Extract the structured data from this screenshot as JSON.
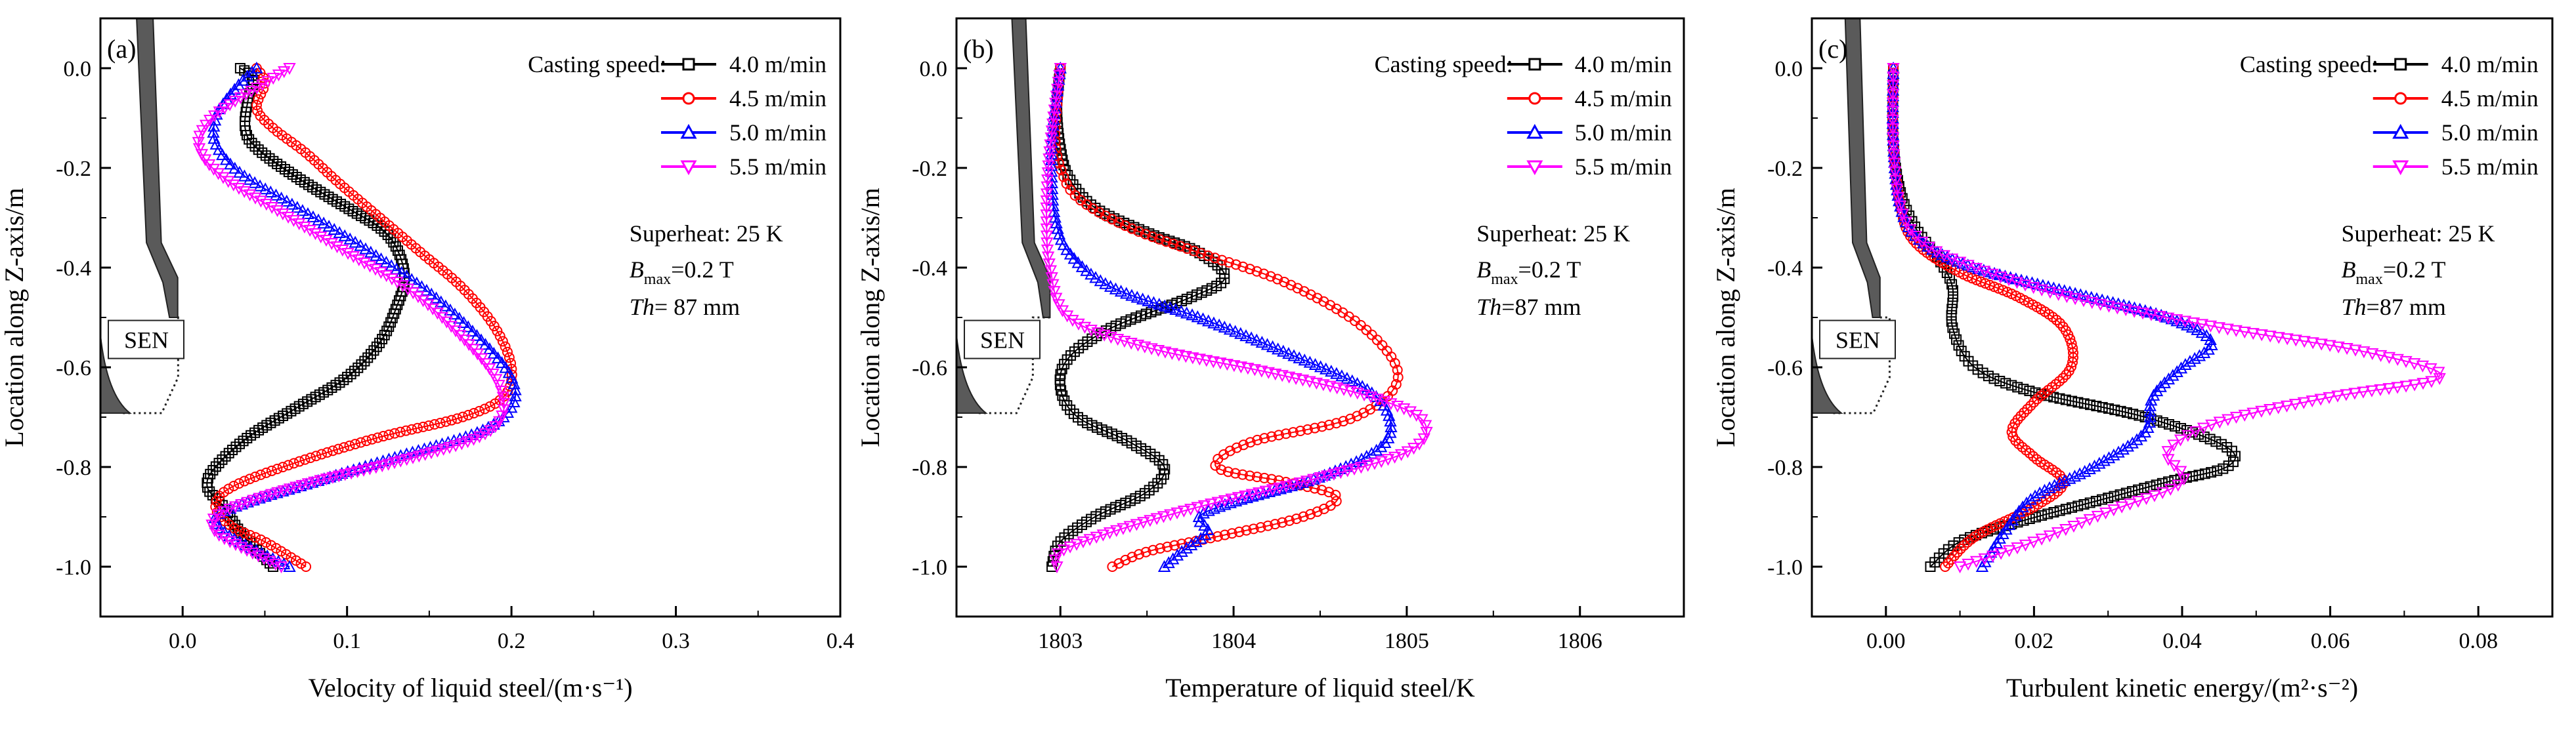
{
  "colors": {
    "4.0 m/min": "#000000",
    "4.5 m/min": "#ff0000",
    "5.0 m/min": "#0000ff",
    "5.5 m/min": "#ff00ff",
    "sen": "#5a5a5a"
  },
  "legend_title": "Casting speed:",
  "sen_label": "SEN",
  "chart_data": [
    {
      "type": "line",
      "panel": "(a)",
      "xlabel": "Velocity of liquid steel/(m·s⁻¹)",
      "ylabel": "Location along Z-axis/m",
      "xlim": [
        -0.05,
        0.4
      ],
      "ylim": [
        -1.1,
        0.1
      ],
      "xticks": [
        "0.0",
        "0.1",
        "0.2",
        "0.3",
        "0.4"
      ],
      "yticks": [
        "0.0",
        "-0.2",
        "-0.4",
        "-0.6",
        "-0.8",
        "-1.0"
      ],
      "xtick_values": [
        0,
        0.1,
        0.2,
        0.3,
        0.4
      ],
      "ytick_values": [
        0,
        -0.2,
        -0.4,
        -0.6,
        -0.8,
        -1.0
      ],
      "sen": {
        "x": [
          -0.038,
          -0.028,
          -0.022,
          -0.012,
          -0.008,
          -0.003,
          -0.003,
          -0.013,
          -0.018,
          -0.03
        ],
        "z": [
          0.1,
          0.1,
          -0.35,
          -0.43,
          -0.5,
          -0.5,
          -0.42,
          -0.35,
          0.1,
          0.1
        ]
      },
      "annotations": {
        "superheat": "Superheat: 25 K",
        "bmax_sym": "B",
        "bmax_sub": "max",
        "bmax_val": "=0.2 T",
        "th_sym": "Th",
        "th_val": "= 87 mm"
      },
      "series": [
        {
          "name": "4.0 m/min",
          "marker": "square",
          "x": [
            0.035,
            0.043,
            0.04,
            0.038,
            0.045,
            0.07,
            0.1,
            0.12,
            0.13,
            0.135,
            0.13,
            0.12,
            0.1,
            0.07,
            0.04,
            0.02,
            0.015,
            0.025,
            0.035,
            0.055
          ],
          "y": [
            0.0,
            -0.02,
            -0.06,
            -0.12,
            -0.16,
            -0.22,
            -0.28,
            -0.32,
            -0.36,
            -0.42,
            -0.48,
            -0.55,
            -0.62,
            -0.68,
            -0.74,
            -0.8,
            -0.84,
            -0.88,
            -0.93,
            -1.0
          ]
        },
        {
          "name": "4.5 m/min",
          "marker": "circle",
          "x": [
            0.045,
            0.05,
            0.045,
            0.055,
            0.075,
            0.095,
            0.12,
            0.145,
            0.17,
            0.19,
            0.2,
            0.195,
            0.17,
            0.12,
            0.07,
            0.03,
            0.02,
            0.03,
            0.05,
            0.075
          ],
          "y": [
            0.0,
            -0.03,
            -0.08,
            -0.12,
            -0.17,
            -0.23,
            -0.3,
            -0.37,
            -0.44,
            -0.52,
            -0.6,
            -0.66,
            -0.7,
            -0.74,
            -0.79,
            -0.84,
            -0.88,
            -0.92,
            -0.95,
            -1.0
          ]
        },
        {
          "name": "5.0 m/min",
          "marker": "triangle-up",
          "x": [
            0.045,
            0.035,
            0.025,
            0.02,
            0.02,
            0.035,
            0.07,
            0.11,
            0.15,
            0.18,
            0.2,
            0.2,
            0.18,
            0.13,
            0.08,
            0.04,
            0.02,
            0.025,
            0.04,
            0.065
          ],
          "y": [
            0.0,
            -0.03,
            -0.07,
            -0.1,
            -0.15,
            -0.21,
            -0.28,
            -0.36,
            -0.45,
            -0.54,
            -0.62,
            -0.68,
            -0.73,
            -0.78,
            -0.83,
            -0.87,
            -0.9,
            -0.93,
            -0.96,
            -1.0
          ]
        },
        {
          "name": "5.5 m/min",
          "marker": "triangle-down",
          "x": [
            0.065,
            0.05,
            0.03,
            0.015,
            0.01,
            0.025,
            0.06,
            0.1,
            0.14,
            0.17,
            0.19,
            0.195,
            0.18,
            0.13,
            0.08,
            0.04,
            0.02,
            0.02,
            0.035,
            0.06
          ],
          "y": [
            0.0,
            -0.03,
            -0.07,
            -0.11,
            -0.16,
            -0.22,
            -0.29,
            -0.37,
            -0.45,
            -0.54,
            -0.62,
            -0.69,
            -0.74,
            -0.79,
            -0.83,
            -0.87,
            -0.9,
            -0.93,
            -0.96,
            -1.0
          ]
        }
      ]
    },
    {
      "type": "line",
      "panel": "(b)",
      "xlabel": "Temperature of liquid steel/K",
      "ylabel": "Location along Z-axis/m",
      "xlim": [
        1802.4,
        1806.6
      ],
      "ylim": [
        -1.1,
        0.1
      ],
      "xticks": [
        "1803",
        "1804",
        "1805",
        "1806"
      ],
      "yticks": [
        "0.0",
        "-0.2",
        "-0.4",
        "-0.6",
        "-0.8",
        "-1.0"
      ],
      "xtick_values": [
        1803,
        1804,
        1805,
        1806
      ],
      "ytick_values": [
        0,
        -0.2,
        -0.4,
        -0.6,
        -0.8,
        -1.0
      ],
      "sen": {
        "x": [
          1802.63,
          1802.72,
          1802.78,
          1802.87,
          1802.9,
          1802.94,
          1802.94,
          1802.85,
          1802.8,
          1802.7
        ],
        "z": [
          0.1,
          0.1,
          -0.35,
          -0.43,
          -0.5,
          -0.5,
          -0.42,
          -0.35,
          0.1,
          0.1
        ]
      },
      "annotations": {
        "superheat": "Superheat: 25 K",
        "bmax_sym": "B",
        "bmax_sub": "max",
        "bmax_val": "=0.2 T",
        "th_sym": "Th",
        "th_val": "=87 mm"
      },
      "series": [
        {
          "name": "4.0 m/min",
          "marker": "square",
          "x": [
            1803.0,
            1802.98,
            1803.0,
            1803.05,
            1803.2,
            1803.5,
            1803.8,
            1803.95,
            1803.75,
            1803.3,
            1803.05,
            1803.0,
            1803.1,
            1803.4,
            1803.6,
            1803.5,
            1803.2,
            1803.0,
            1802.95
          ],
          "y": [
            0.0,
            -0.08,
            -0.16,
            -0.22,
            -0.28,
            -0.33,
            -0.37,
            -0.42,
            -0.46,
            -0.52,
            -0.58,
            -0.64,
            -0.7,
            -0.75,
            -0.8,
            -0.85,
            -0.9,
            -0.95,
            -1.0
          ]
        },
        {
          "name": "4.5 m/min",
          "marker": "circle",
          "x": [
            1803.0,
            1802.98,
            1802.97,
            1803.0,
            1803.1,
            1803.4,
            1803.8,
            1804.3,
            1804.75,
            1804.95,
            1804.7,
            1804.1,
            1803.9,
            1804.3,
            1804.6,
            1804.4,
            1803.9,
            1803.5,
            1803.3
          ],
          "y": [
            0.0,
            -0.08,
            -0.14,
            -0.2,
            -0.26,
            -0.32,
            -0.37,
            -0.43,
            -0.52,
            -0.62,
            -0.7,
            -0.75,
            -0.8,
            -0.83,
            -0.86,
            -0.9,
            -0.94,
            -0.97,
            -1.0
          ]
        },
        {
          "name": "5.0 m/min",
          "marker": "triangle-up",
          "x": [
            1803.0,
            1802.97,
            1802.95,
            1802.95,
            1802.97,
            1803.05,
            1803.3,
            1803.8,
            1804.3,
            1804.75,
            1804.9,
            1804.85,
            1804.5,
            1804.0,
            1803.8,
            1803.85,
            1803.7,
            1803.6
          ],
          "y": [
            0.0,
            -0.08,
            -0.15,
            -0.22,
            -0.3,
            -0.37,
            -0.44,
            -0.5,
            -0.57,
            -0.64,
            -0.7,
            -0.76,
            -0.82,
            -0.87,
            -0.9,
            -0.93,
            -0.97,
            -1.0
          ]
        },
        {
          "name": "5.5 m/min",
          "marker": "triangle-down",
          "x": [
            1803.0,
            1802.96,
            1802.93,
            1802.92,
            1802.94,
            1803.05,
            1803.5,
            1804.2,
            1804.8,
            1805.1,
            1805.0,
            1804.4,
            1803.8,
            1803.3,
            1803.0,
            1802.98
          ],
          "y": [
            0.0,
            -0.1,
            -0.2,
            -0.3,
            -0.4,
            -0.5,
            -0.56,
            -0.61,
            -0.66,
            -0.71,
            -0.77,
            -0.83,
            -0.88,
            -0.93,
            -0.97,
            -1.0
          ]
        }
      ]
    },
    {
      "type": "line",
      "panel": "(c)",
      "xlabel": "Turbulent kinetic energy/(m²·s⁻²)",
      "ylabel": "Location along Z-axis/m",
      "xlim": [
        -0.01,
        0.09
      ],
      "ylim": [
        -1.1,
        0.1
      ],
      "xticks": [
        "0.00",
        "0.02",
        "0.04",
        "0.06",
        "0.08"
      ],
      "yticks": [
        "0.0",
        "-0.2",
        "-0.4",
        "-0.6",
        "-0.8",
        "-1.0"
      ],
      "xtick_values": [
        0,
        0.02,
        0.04,
        0.06,
        0.08
      ],
      "ytick_values": [
        0,
        -0.2,
        -0.4,
        -0.6,
        -0.8,
        -1.0
      ],
      "sen": {
        "x": [
          -0.0075,
          -0.0055,
          -0.0045,
          -0.0025,
          -0.0018,
          -0.0008,
          -0.0008,
          -0.0026,
          -0.0035,
          -0.006
        ],
        "z": [
          0.1,
          0.1,
          -0.35,
          -0.43,
          -0.5,
          -0.5,
          -0.42,
          -0.35,
          0.1,
          0.1
        ]
      },
      "annotations": {
        "superheat": "Superheat: 25 K",
        "bmax_sym": "B",
        "bmax_sub": "max",
        "bmax_val": "=0.2 T",
        "th_sym": "Th",
        "th_val": "=87 mm"
      },
      "series": [
        {
          "name": "4.0 m/min",
          "marker": "square",
          "x": [
            0.001,
            0.001,
            0.002,
            0.004,
            0.007,
            0.009,
            0.009,
            0.012,
            0.02,
            0.035,
            0.046,
            0.046,
            0.038,
            0.028,
            0.018,
            0.01,
            0.006
          ],
          "y": [
            0.0,
            -0.15,
            -0.25,
            -0.32,
            -0.38,
            -0.44,
            -0.52,
            -0.6,
            -0.65,
            -0.7,
            -0.76,
            -0.8,
            -0.83,
            -0.87,
            -0.91,
            -0.95,
            -1.0
          ]
        },
        {
          "name": "4.5 m/min",
          "marker": "circle",
          "x": [
            0.001,
            0.001,
            0.002,
            0.004,
            0.01,
            0.018,
            0.024,
            0.025,
            0.02,
            0.017,
            0.02,
            0.024,
            0.02,
            0.012,
            0.008
          ],
          "y": [
            0.0,
            -0.15,
            -0.28,
            -0.35,
            -0.41,
            -0.46,
            -0.52,
            -0.6,
            -0.67,
            -0.73,
            -0.78,
            -0.83,
            -0.88,
            -0.94,
            -1.0
          ]
        },
        {
          "name": "5.0 m/min",
          "marker": "triangle-up",
          "x": [
            0.001,
            0.001,
            0.002,
            0.005,
            0.012,
            0.025,
            0.038,
            0.044,
            0.04,
            0.036,
            0.035,
            0.028,
            0.02,
            0.016,
            0.013
          ],
          "y": [
            0.0,
            -0.15,
            -0.28,
            -0.35,
            -0.4,
            -0.45,
            -0.5,
            -0.55,
            -0.6,
            -0.66,
            -0.73,
            -0.8,
            -0.86,
            -0.93,
            -1.0
          ]
        },
        {
          "name": "5.5 m/min",
          "marker": "triangle-down",
          "x": [
            0.001,
            0.001,
            0.002,
            0.005,
            0.012,
            0.025,
            0.045,
            0.065,
            0.075,
            0.06,
            0.045,
            0.038,
            0.04,
            0.03,
            0.02,
            0.01
          ],
          "y": [
            0.0,
            -0.15,
            -0.28,
            -0.35,
            -0.4,
            -0.46,
            -0.52,
            -0.57,
            -0.62,
            -0.66,
            -0.71,
            -0.77,
            -0.83,
            -0.89,
            -0.95,
            -1.0
          ]
        }
      ]
    }
  ]
}
